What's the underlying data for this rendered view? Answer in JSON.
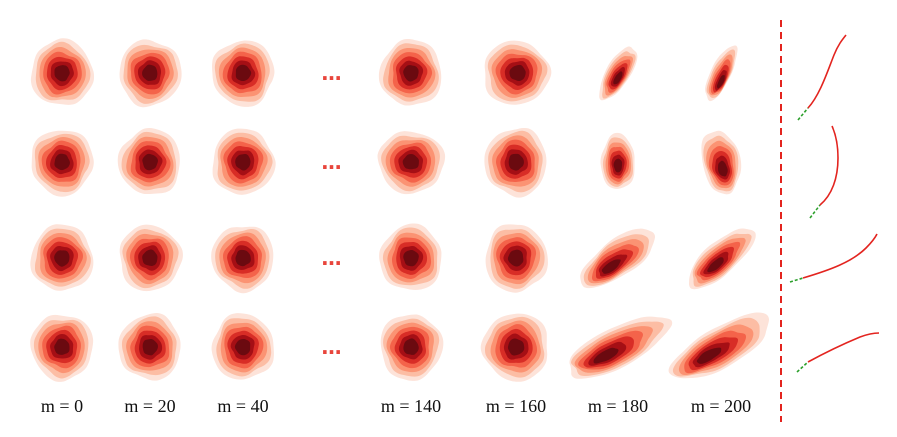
{
  "columns": [
    {
      "label": "m = 0"
    },
    {
      "label": "m = 20"
    },
    {
      "label": "m = 40"
    },
    {
      "label": "m = 140"
    },
    {
      "label": "m = 160"
    },
    {
      "label": "m = 180"
    },
    {
      "label": "m = 200"
    }
  ],
  "ellipsis": "…",
  "rows": 4,
  "colors": {
    "levels": [
      "#fde3d9",
      "#fcbda4",
      "#fb9373",
      "#f4634a",
      "#d82d26",
      "#a50f15",
      "#6b0a10"
    ],
    "divider": "#e3241f",
    "path": "#e3241f",
    "path_start": "#2ca02c"
  }
}
